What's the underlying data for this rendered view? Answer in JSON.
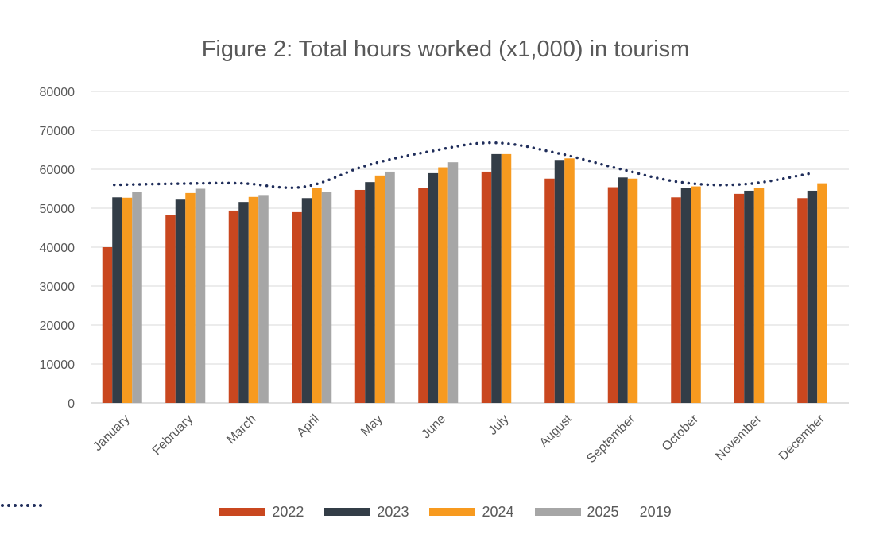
{
  "chart_data": {
    "type": "bar",
    "title": "Figure 2: Total hours worked (x1,000) in tourism",
    "categories": [
      "January",
      "February",
      "March",
      "April",
      "May",
      "June",
      "July",
      "August",
      "September",
      "October",
      "November",
      "December"
    ],
    "y_ticks": [
      "0",
      "10000",
      "20000",
      "30000",
      "40000",
      "50000",
      "60000",
      "70000",
      "80000"
    ],
    "ylim": [
      0,
      80000
    ],
    "grid": true,
    "legend_position": "bottom",
    "series": [
      {
        "name": "2022",
        "color": "#C9471F",
        "values": [
          40000,
          48200,
          49400,
          49000,
          54700,
          55300,
          59400,
          57600,
          55400,
          52800,
          53700,
          52600
        ]
      },
      {
        "name": "2023",
        "color": "#333D47",
        "values": [
          52800,
          52200,
          51600,
          52600,
          56700,
          59000,
          63900,
          62400,
          57900,
          55300,
          54500,
          54500
        ]
      },
      {
        "name": "2024",
        "color": "#F79A1F",
        "values": [
          52700,
          53900,
          52900,
          55300,
          58400,
          60500,
          63900,
          62800,
          57600,
          55600,
          55100,
          56400
        ]
      },
      {
        "name": "2025",
        "color": "#A6A6A6",
        "values": [
          54100,
          55000,
          53400,
          54100,
          59400,
          61800,
          null,
          null,
          null,
          null,
          null,
          null
        ]
      }
    ],
    "line_series": {
      "name": "2019",
      "style": "dotted",
      "color": "#1F2D5A",
      "values": [
        56000,
        56300,
        56400,
        55500,
        61000,
        64600,
        66800,
        64200,
        60100,
        56600,
        56200,
        58900
      ]
    }
  }
}
